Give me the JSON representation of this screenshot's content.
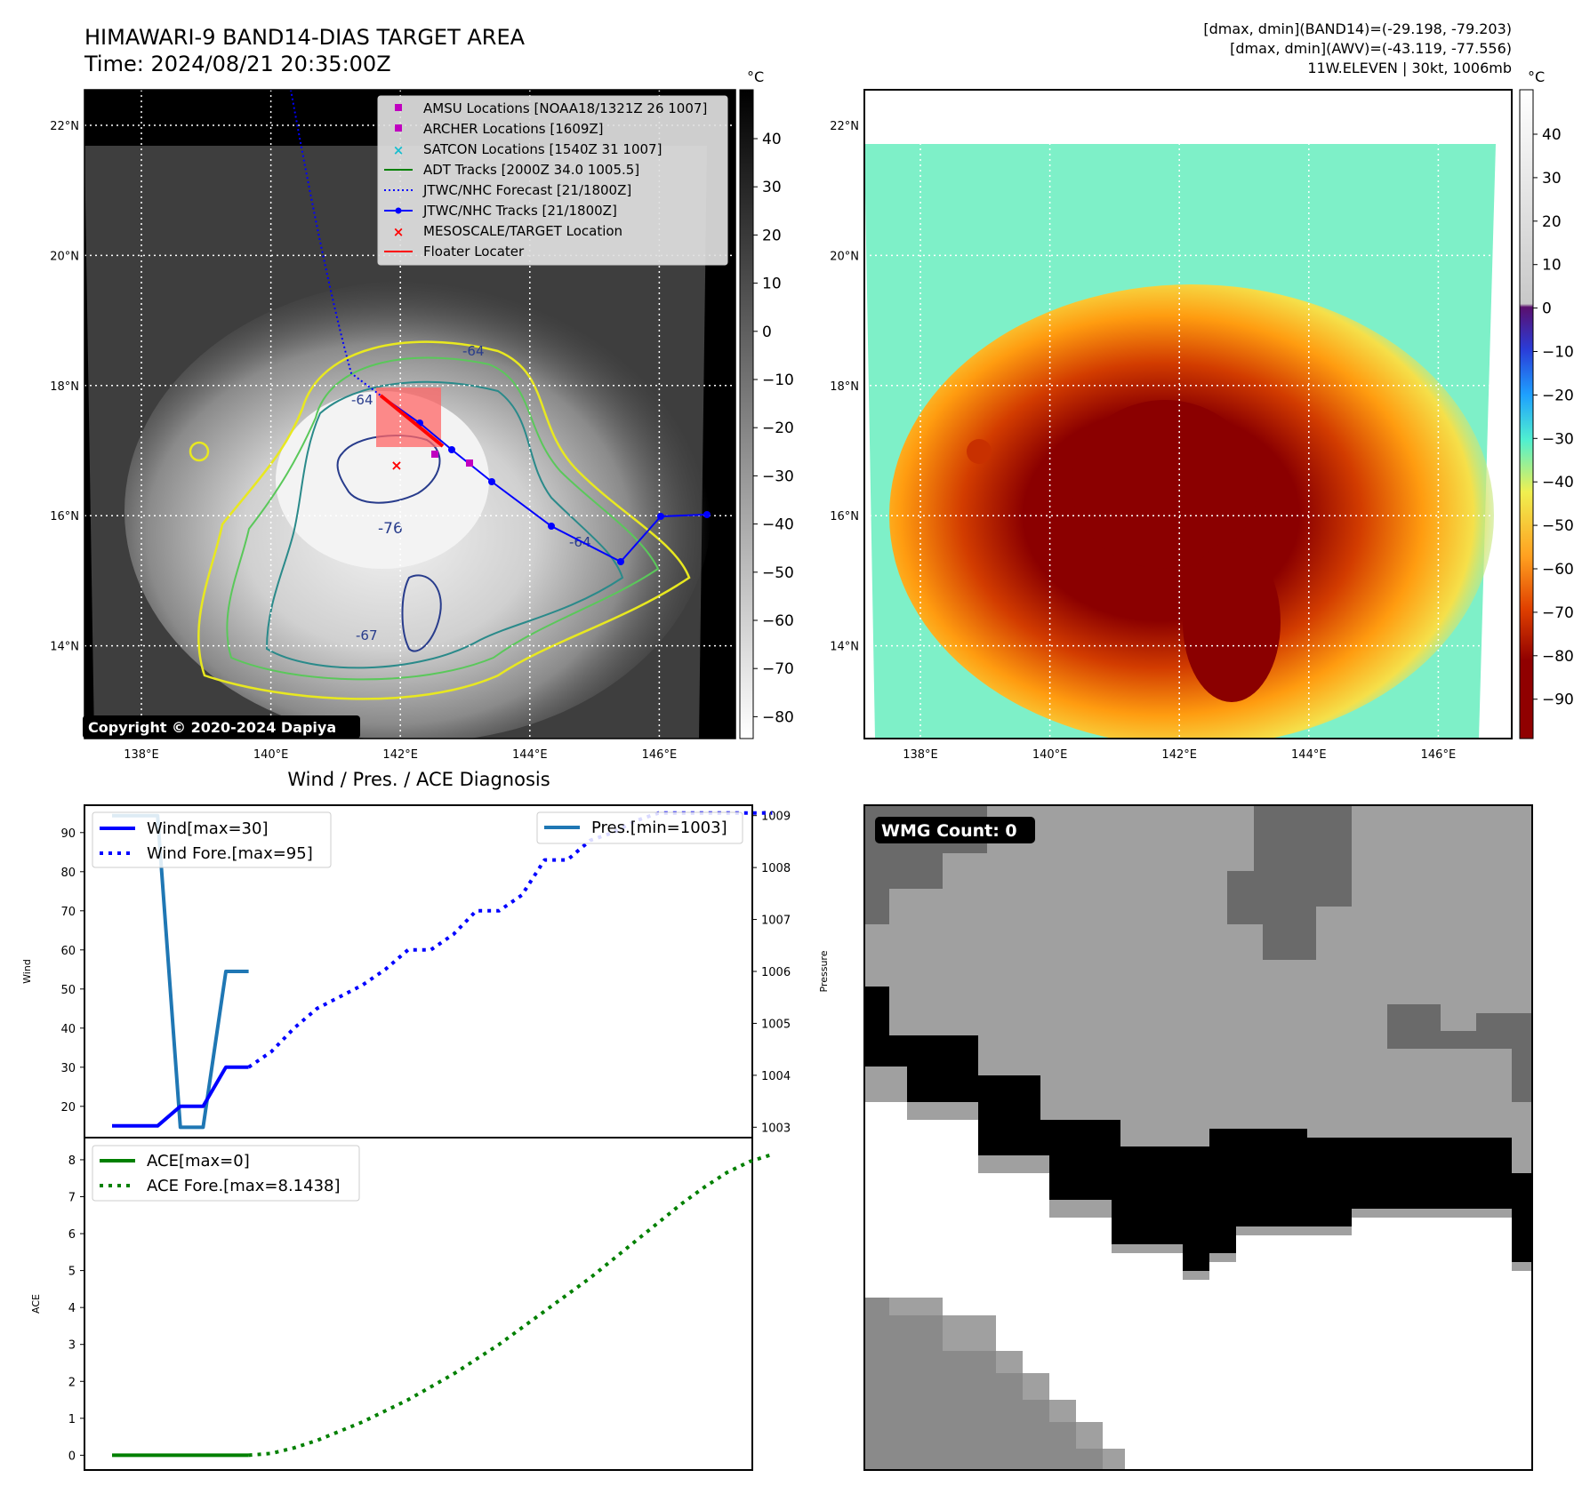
{
  "header": {
    "title_line1": "HIMAWARI-9 BAND14-DIAS TARGET AREA",
    "title_line2": "Time: 2024/08/21 20:35:00Z",
    "info_line1": "[dmax, dmin](BAND14)=(-29.198, -79.203)",
    "info_line2": "[dmax, dmin](AWV)=(-43.119, -77.556)",
    "info_line3": "11W.ELEVEN | 30kt, 1006mb"
  },
  "map_axes": {
    "lat_labels": [
      "22°N",
      "20°N",
      "18°N",
      "16°N",
      "14°N"
    ],
    "lon_labels": [
      "138°E",
      "140°E",
      "142°E",
      "144°E",
      "146°E"
    ],
    "lat_values": [
      22,
      20,
      18,
      16,
      14
    ],
    "lon_values": [
      138,
      140,
      142,
      144,
      146
    ]
  },
  "left_map": {
    "colorbar_unit": "°C",
    "colorbar_ticks": [
      "40",
      "30",
      "20",
      "10",
      "0",
      "−10",
      "−20",
      "−30",
      "−40",
      "−50",
      "−60",
      "−70",
      "−80"
    ],
    "copyright": "Copyright © 2020-2024 Dapiya",
    "contour_labels": [
      "-64",
      "-64",
      "-76",
      "-64",
      "-67"
    ],
    "legend": [
      {
        "label": "AMSU Locations [NOAA18/1321Z 26 1007]",
        "marker": "square",
        "color": "#c000c0"
      },
      {
        "label": "ARCHER Locations [1609Z]",
        "marker": "square",
        "color": "#c000c0"
      },
      {
        "label": "SATCON Locations [1540Z 31 1007]",
        "marker": "x",
        "color": "#17becf"
      },
      {
        "label": "ADT Tracks [2000Z 34.0 1005.5]",
        "marker": "line",
        "color": "#008000"
      },
      {
        "label": "JTWC/NHC Forecast [21/1800Z]",
        "marker": "dotted",
        "color": "#0000ff"
      },
      {
        "label": "JTWC/NHC Tracks [21/1800Z]",
        "marker": "line-dot",
        "color": "#0000ff"
      },
      {
        "label": "MESOSCALE/TARGET Location",
        "marker": "x",
        "color": "#ff0000"
      },
      {
        "label": "Floater Locater",
        "marker": "line",
        "color": "#ff0000"
      }
    ]
  },
  "right_map": {
    "colorbar_unit": "°C",
    "colorbar_ticks": [
      "40",
      "30",
      "20",
      "10",
      "0",
      "−10",
      "−20",
      "−30",
      "−40",
      "−50",
      "−60",
      "−70",
      "−80",
      "−90"
    ]
  },
  "diagnosis": {
    "title": "Wind / Pres. / ACE Diagnosis",
    "wind_axis_label": "Wind",
    "pressure_axis_label": "Pressure",
    "ace_axis_label": "ACE",
    "wind_ticks": [
      "90",
      "80",
      "70",
      "60",
      "50",
      "40",
      "30",
      "20"
    ],
    "pressure_ticks": [
      "1009",
      "1008",
      "1007",
      "1006",
      "1005",
      "1004",
      "1003"
    ],
    "ace_ticks": [
      "8",
      "7",
      "6",
      "5",
      "4",
      "3",
      "2",
      "1",
      "0"
    ],
    "legend_wind": "Wind[max=30]",
    "legend_wind_fore": "Wind Fore.[max=95]",
    "legend_pres": "Pres.[min=1003]",
    "legend_ace": "ACE[max=0]",
    "legend_ace_fore": "ACE Fore.[max=8.1438]"
  },
  "wmg": {
    "label": "WMG Count: 0"
  },
  "chart_data": [
    {
      "type": "line",
      "title": "Wind / Pres. / ACE Diagnosis",
      "ylabel": "Wind",
      "ylim": [
        12,
        97
      ],
      "series": [
        {
          "name": "Wind[max=30]",
          "style": "solid",
          "color": "#0000ff",
          "x": [
            0,
            1,
            2,
            3,
            4,
            5,
            6
          ],
          "y": [
            15,
            15,
            15,
            20,
            20,
            30,
            30
          ]
        },
        {
          "name": "Wind Fore.[max=95]",
          "style": "dotted",
          "color": "#0000ff",
          "x": [
            6,
            7,
            8,
            9,
            10,
            11,
            12,
            13,
            14,
            15,
            16,
            17,
            18,
            19,
            20,
            21,
            22,
            23,
            24,
            25,
            26,
            27,
            28,
            29
          ],
          "y": [
            30,
            34,
            40,
            45,
            48,
            51,
            55,
            60,
            60,
            64,
            70,
            70,
            74,
            83,
            83,
            88,
            90,
            93,
            95,
            95,
            95,
            95,
            95,
            95
          ]
        }
      ]
    },
    {
      "type": "line",
      "ylabel": "Pressure",
      "ylim": [
        1002.8,
        1009.2
      ],
      "series": [
        {
          "name": "Pres.[min=1003]",
          "style": "solid",
          "color": "#1f77b4",
          "x": [
            0,
            1,
            2,
            3,
            4,
            5,
            6
          ],
          "y": [
            1009,
            1009,
            1009,
            1003,
            1003,
            1006,
            1006
          ]
        }
      ]
    },
    {
      "type": "line",
      "ylabel": "ACE",
      "ylim": [
        -0.4,
        8.6
      ],
      "series": [
        {
          "name": "ACE[max=0]",
          "style": "solid",
          "color": "#008000",
          "x": [
            0,
            1,
            2,
            3,
            4,
            5,
            6
          ],
          "y": [
            0,
            0,
            0,
            0,
            0,
            0,
            0
          ]
        },
        {
          "name": "ACE Fore.[max=8.1438]",
          "style": "dotted",
          "color": "#008000",
          "x": [
            6,
            7,
            8,
            9,
            10,
            11,
            12,
            13,
            14,
            15,
            16,
            17,
            18,
            19,
            20,
            21,
            22,
            23,
            24,
            25,
            26,
            27,
            28,
            29
          ],
          "y": [
            0,
            0.05,
            0.2,
            0.4,
            0.65,
            0.9,
            1.2,
            1.5,
            1.85,
            2.2,
            2.6,
            3.0,
            3.45,
            3.9,
            4.35,
            4.8,
            5.3,
            5.8,
            6.3,
            6.8,
            7.25,
            7.65,
            7.95,
            8.1438
          ]
        }
      ]
    }
  ]
}
